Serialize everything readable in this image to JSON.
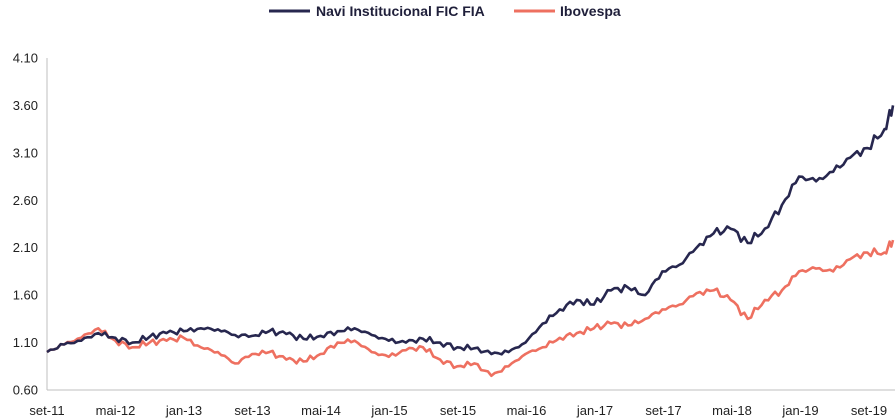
{
  "chart_data": {
    "type": "line",
    "title": "",
    "xlabel": "",
    "ylabel": "",
    "ylim": [
      0.6,
      4.1
    ],
    "yticks": [
      "0.60",
      "1.10",
      "1.60",
      "2.10",
      "2.60",
      "3.10",
      "3.60",
      "4.10"
    ],
    "grid": false,
    "legend_position": "top-center",
    "x_tick_labels": [
      "set-11",
      "mai-12",
      "jan-13",
      "set-13",
      "mai-14",
      "jan-15",
      "set-15",
      "mai-16",
      "jan-17",
      "set-17",
      "mai-18",
      "jan-19",
      "set-19"
    ],
    "x_start": "2011-09",
    "x_end": "2019-12",
    "x": [
      "2011-09",
      "2011-11",
      "2012-01",
      "2012-03",
      "2012-05",
      "2012-07",
      "2012-09",
      "2012-11",
      "2013-01",
      "2013-03",
      "2013-05",
      "2013-07",
      "2013-09",
      "2013-11",
      "2014-01",
      "2014-03",
      "2014-05",
      "2014-07",
      "2014-09",
      "2014-11",
      "2015-01",
      "2015-03",
      "2015-05",
      "2015-07",
      "2015-09",
      "2015-11",
      "2016-01",
      "2016-03",
      "2016-05",
      "2016-07",
      "2016-09",
      "2016-11",
      "2017-01",
      "2017-03",
      "2017-05",
      "2017-07",
      "2017-09",
      "2017-11",
      "2018-01",
      "2018-03",
      "2018-05",
      "2018-07",
      "2018-09",
      "2018-11",
      "2019-01",
      "2019-03",
      "2019-05",
      "2019-07",
      "2019-09",
      "2019-11",
      "2019-12"
    ],
    "series": [
      {
        "name": "Navi Institucional FIC FIA",
        "color": "#27274f",
        "values": [
          1.0,
          1.08,
          1.12,
          1.2,
          1.15,
          1.1,
          1.16,
          1.2,
          1.22,
          1.25,
          1.24,
          1.18,
          1.17,
          1.22,
          1.19,
          1.14,
          1.17,
          1.22,
          1.25,
          1.18,
          1.12,
          1.1,
          1.14,
          1.1,
          1.05,
          1.04,
          0.98,
          1.0,
          1.1,
          1.3,
          1.45,
          1.55,
          1.5,
          1.65,
          1.68,
          1.6,
          1.85,
          1.92,
          2.1,
          2.25,
          2.3,
          2.15,
          2.3,
          2.55,
          2.85,
          2.8,
          2.9,
          3.05,
          3.15,
          3.35,
          3.6
        ]
      },
      {
        "name": "Ibovespa",
        "color": "#ee7060",
        "values": [
          1.0,
          1.08,
          1.15,
          1.25,
          1.12,
          1.05,
          1.1,
          1.12,
          1.15,
          1.05,
          1.0,
          0.88,
          0.98,
          1.0,
          0.92,
          0.9,
          0.98,
          1.1,
          1.12,
          1.0,
          0.95,
          1.02,
          1.05,
          0.92,
          0.85,
          0.88,
          0.75,
          0.85,
          0.98,
          1.05,
          1.15,
          1.2,
          1.25,
          1.3,
          1.28,
          1.35,
          1.45,
          1.5,
          1.62,
          1.65,
          1.55,
          1.35,
          1.55,
          1.65,
          1.85,
          1.88,
          1.85,
          1.98,
          2.05,
          2.05,
          2.18
        ]
      }
    ]
  }
}
